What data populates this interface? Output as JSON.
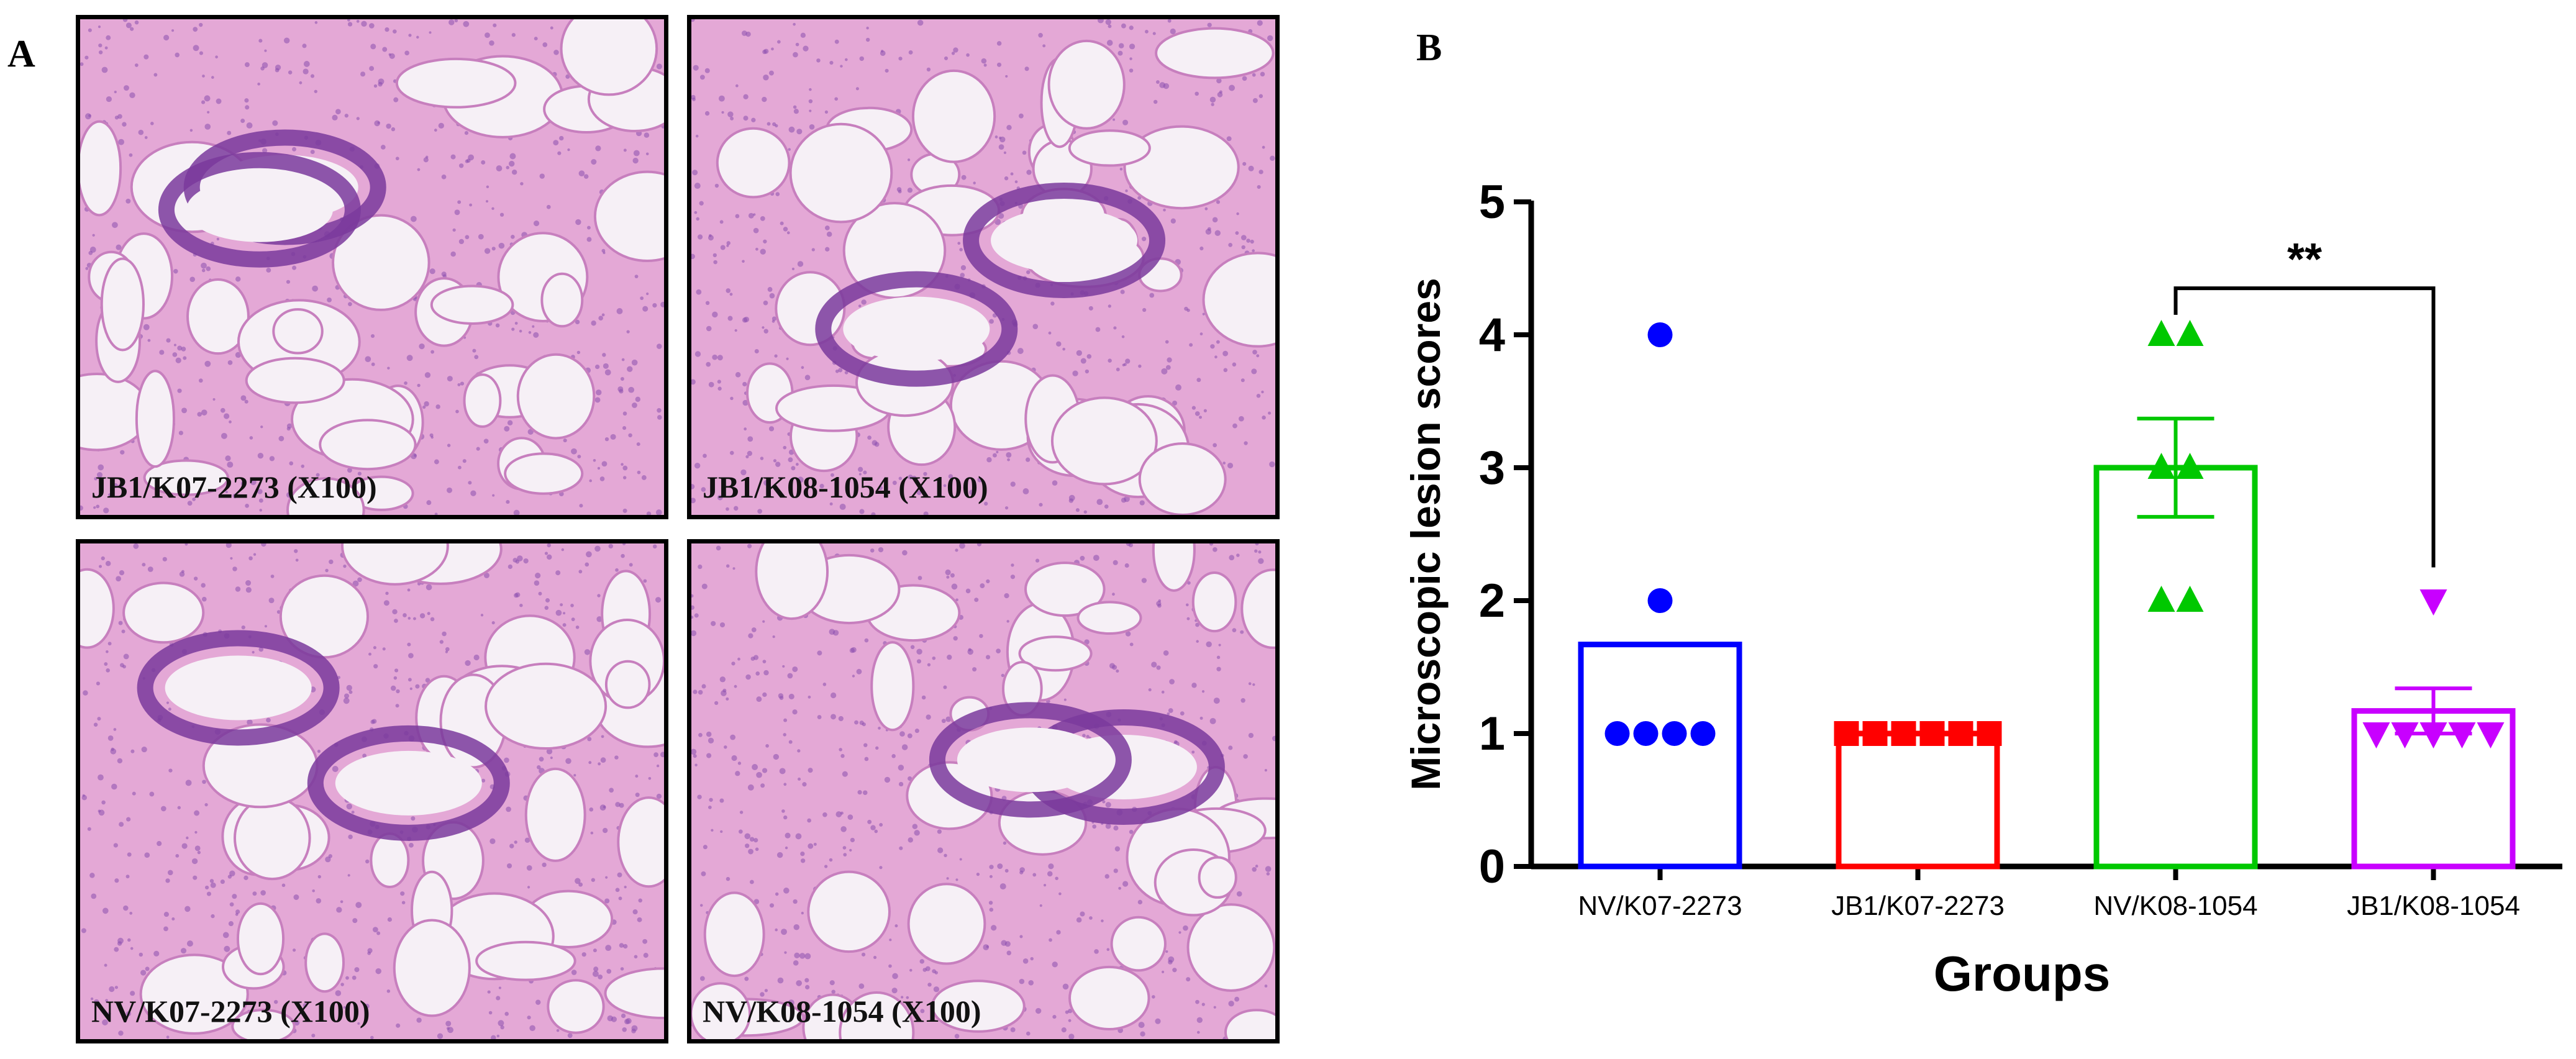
{
  "panel_a": {
    "letter": "A",
    "images": [
      {
        "label": "JB1/K07-2273 (X100)"
      },
      {
        "label": "JB1/K08-1054 (X100)"
      },
      {
        "label": "NV/K07-2273 (X100)"
      },
      {
        "label": "NV/K08-1054 (X100)"
      }
    ]
  },
  "panel_b": {
    "letter": "B"
  },
  "colors": {
    "tissue_pink": "#e4a8d6",
    "tissue_purple": "#8a4fae",
    "tissue_bg": "#f6f0f6",
    "series": [
      "#0000ff",
      "#ff0000",
      "#00c800",
      "#c800ff"
    ]
  },
  "chart_data": {
    "type": "bar",
    "title": "",
    "xlabel": "Groups",
    "ylabel": "Microscopic lesion scores",
    "ylim": [
      0,
      5
    ],
    "yticks": [
      "0",
      "1",
      "2",
      "3",
      "4",
      "5"
    ],
    "categories": [
      "NV/K07-2273",
      "JB1/K07-2273",
      "NV/K08-1054",
      "JB1/K08-1054"
    ],
    "bar_style": "open",
    "series": [
      {
        "mean": 1.67,
        "sem": null,
        "marker": "circle",
        "points": [
          4,
          2,
          1,
          1,
          1,
          1
        ]
      },
      {
        "mean": 1.0,
        "sem": null,
        "marker": "square",
        "points": [
          1,
          1,
          1,
          1,
          1,
          1
        ]
      },
      {
        "mean": 3.0,
        "sem": 0.37,
        "marker": "triangle-up",
        "points": [
          4,
          4,
          3,
          3,
          2,
          2
        ]
      },
      {
        "mean": 1.17,
        "sem": 0.17,
        "marker": "triangle-down",
        "points": [
          2,
          1,
          1,
          1,
          1,
          1
        ]
      }
    ],
    "significance": {
      "from": 2,
      "to": 3,
      "label": "**"
    }
  }
}
